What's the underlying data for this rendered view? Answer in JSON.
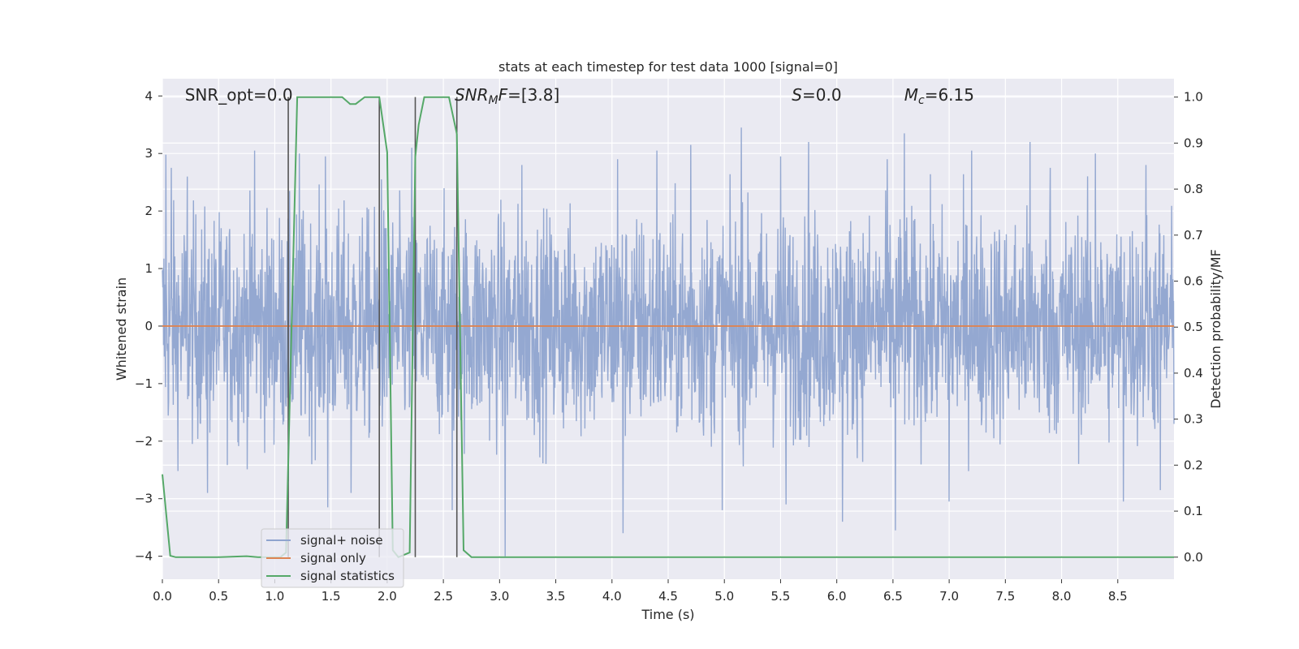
{
  "chart_data": {
    "type": "line",
    "title": "stats at each timestep for test data 1000 [signal=0]",
    "xlabel": "Time (s)",
    "ylabel": "Whitened strain",
    "y2label": "Detection probability/MF",
    "xlim": [
      0,
      9.0
    ],
    "ylim": [
      -4.4,
      4.3
    ],
    "y2lim": [
      -0.048,
      1.04
    ],
    "xticks": [
      "0.0",
      "0.5",
      "1.0",
      "1.5",
      "2.0",
      "2.5",
      "3.0",
      "3.5",
      "4.0",
      "4.5",
      "5.0",
      "5.5",
      "6.0",
      "6.5",
      "7.0",
      "7.5",
      "8.0",
      "8.5"
    ],
    "yticks": [
      "4",
      "3",
      "2",
      "1",
      "0",
      "−1",
      "−2",
      "−3",
      "−4"
    ],
    "y2ticks": [
      "1.0",
      "0.9",
      "0.8",
      "0.7",
      "0.6",
      "0.5",
      "0.4",
      "0.3",
      "0.2",
      "0.1",
      "0.0"
    ],
    "grid": true,
    "legend_position": "lower-left",
    "annotations": {
      "snr_opt": "SNR_opt=0.0",
      "snr_mf_var": "SNR",
      "snr_mf_sub": "M",
      "snr_mf_var2": "F",
      "snr_mf_value": "=[3.8]",
      "s_var": "S",
      "s_value": "=0.0",
      "mc_var": "M",
      "mc_sub": "c",
      "mc_value": "=6.15"
    },
    "series": [
      {
        "name": "signal+ noise",
        "color": "#8fa4cf",
        "description_axis": "left",
        "envelope_upper_typical": 2.2,
        "envelope_lower_typical": -2.1,
        "peaks_upper": [
          [
            0.03,
            2.98
          ],
          [
            0.08,
            2.75
          ],
          [
            0.22,
            2.6
          ],
          [
            0.82,
            3.05
          ],
          [
            1.22,
            3.0
          ],
          [
            1.45,
            2.95
          ],
          [
            1.95,
            2.55
          ],
          [
            2.22,
            3.1
          ],
          [
            3.2,
            2.8
          ],
          [
            4.05,
            2.9
          ],
          [
            4.4,
            3.05
          ],
          [
            4.7,
            3.15
          ],
          [
            5.15,
            3.45
          ],
          [
            5.5,
            2.95
          ],
          [
            5.75,
            3.2
          ],
          [
            6.45,
            2.9
          ],
          [
            6.6,
            3.35
          ],
          [
            7.2,
            3.05
          ],
          [
            7.72,
            3.2
          ],
          [
            7.9,
            2.75
          ],
          [
            8.3,
            3.0
          ],
          [
            8.75,
            2.8
          ]
        ],
        "peaks_lower": [
          [
            0.4,
            -2.9
          ],
          [
            1.12,
            -2.7
          ],
          [
            1.47,
            -3.15
          ],
          [
            1.68,
            -2.9
          ],
          [
            2.58,
            -3.2
          ],
          [
            3.05,
            -4.0
          ],
          [
            4.1,
            -3.6
          ],
          [
            4.98,
            -3.2
          ],
          [
            5.55,
            -3.1
          ],
          [
            6.05,
            -3.4
          ],
          [
            6.52,
            -3.55
          ],
          [
            7.0,
            -3.05
          ],
          [
            8.55,
            -3.05
          ],
          [
            8.88,
            -2.85
          ]
        ]
      },
      {
        "name": "signal only",
        "color": "#dd8452",
        "description_axis": "left",
        "values_constant": 0.0
      },
      {
        "name": "signal statistics",
        "color": "#55a868",
        "description_axis": "right",
        "x": [
          0.0,
          0.07,
          0.12,
          0.5,
          0.75,
          0.85,
          1.0,
          1.05,
          1.1,
          1.2,
          1.6,
          1.67,
          1.72,
          1.8,
          1.93,
          2.0,
          2.05,
          2.1,
          2.2,
          2.25,
          2.28,
          2.33,
          2.55,
          2.62,
          2.68,
          2.75,
          9.0
        ],
        "y": [
          0.18,
          0.003,
          0.0,
          0.0,
          0.002,
          0.0,
          0.0,
          0.0,
          0.01,
          1.0,
          1.0,
          0.985,
          0.985,
          1.0,
          1.0,
          0.88,
          0.015,
          0.0,
          0.01,
          0.87,
          0.94,
          1.0,
          1.0,
          0.92,
          0.015,
          0.0,
          0.0
        ]
      }
    ],
    "vertical_lines": [
      1.12,
      1.93,
      2.25,
      2.62
    ],
    "vertical_line_color": "#555555"
  }
}
